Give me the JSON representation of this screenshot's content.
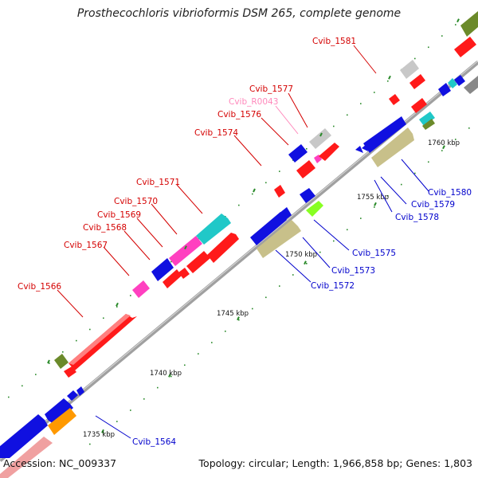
{
  "title": "Prosthecochloris vibrioformis DSM 265, complete genome",
  "footer": {
    "accession_label": "Accession:",
    "accession": "NC_009337",
    "topology_label": "Topology:",
    "topology": "circular",
    "length_label": "Length:",
    "length": "1,966,858 bp",
    "genes_label": "Genes:",
    "genes": "1,803"
  },
  "ticks": [
    {
      "label": "1735 kbp"
    },
    {
      "label": "1740 kbp"
    },
    {
      "label": "1745 kbp"
    },
    {
      "label": "1750 kbp"
    },
    {
      "label": "1755 kbp"
    },
    {
      "label": "1760 kbp"
    }
  ],
  "gene_labels_top": [
    {
      "name": "Cvib_1581",
      "color": "#d40000"
    },
    {
      "name": "Cvib_1577",
      "color": "#d40000"
    },
    {
      "name": "Cvib_R0043",
      "color": "#ff88bb"
    },
    {
      "name": "Cvib_1576",
      "color": "#d40000"
    },
    {
      "name": "Cvib_1574",
      "color": "#d40000"
    },
    {
      "name": "Cvib_1571",
      "color": "#d40000"
    },
    {
      "name": "Cvib_1570",
      "color": "#d40000"
    },
    {
      "name": "Cvib_1569",
      "color": "#d40000"
    },
    {
      "name": "Cvib_1568",
      "color": "#d40000"
    },
    {
      "name": "Cvib_1567",
      "color": "#d40000"
    },
    {
      "name": "Cvib_1566",
      "color": "#d40000"
    }
  ],
  "gene_labels_bottom": [
    {
      "name": "Cvib_1580",
      "color": "#0000cc"
    },
    {
      "name": "Cvib_1579",
      "color": "#0000cc"
    },
    {
      "name": "Cvib_1578",
      "color": "#0000cc"
    },
    {
      "name": "Cvib_1575",
      "color": "#0000cc"
    },
    {
      "name": "Cvib_1573",
      "color": "#0000cc"
    },
    {
      "name": "Cvib_1572",
      "color": "#0000cc"
    },
    {
      "name": "Cvib_1564",
      "color": "#0000cc"
    }
  ],
  "colors": {
    "backbone": "#999999",
    "red": "#ff1a1a",
    "blue": "#1010e0",
    "olive": "#c8c08a",
    "teal": "#20c8c8",
    "magenta": "#ff40c0",
    "green": "#88ff22",
    "orange": "#ff9900",
    "pink": "#f0a0a0",
    "gray": "#c8c8c8",
    "darkolive": "#6b8a2a",
    "tick_green": "#2a8a2a"
  }
}
